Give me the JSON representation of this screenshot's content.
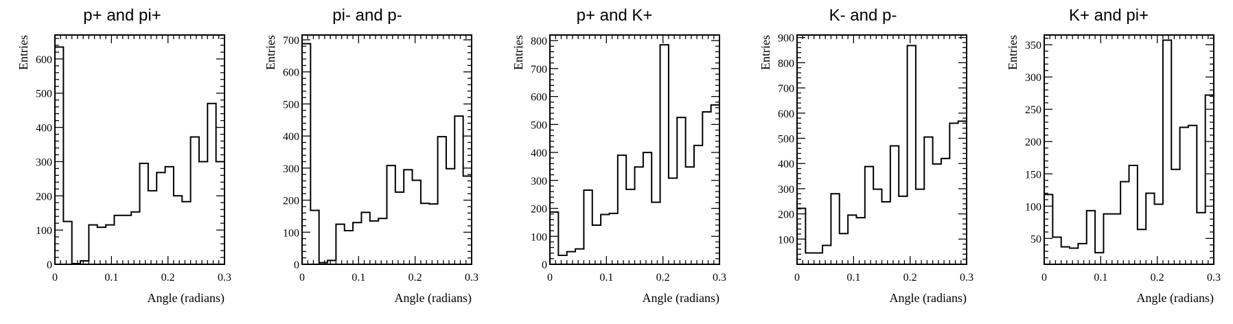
{
  "chart_data": [
    {
      "type": "histogram",
      "title": "p+ and pi+",
      "xlabel": "Angle (radians)",
      "ylabel": "Entries",
      "xlim": [
        0,
        0.3
      ],
      "ylim": [
        0,
        670
      ],
      "x_ticks": [
        "0",
        "0.1",
        "0.2",
        "0.3"
      ],
      "y_ticks": [
        "0",
        "100",
        "200",
        "300",
        "400",
        "500",
        "600"
      ],
      "bin_edges": [
        0,
        0.015,
        0.03,
        0.045,
        0.06,
        0.075,
        0.09,
        0.105,
        0.12,
        0.135,
        0.15,
        0.165,
        0.18,
        0.195,
        0.21,
        0.225,
        0.24,
        0.255,
        0.27,
        0.285,
        0.3
      ],
      "values": [
        635,
        125,
        2,
        10,
        115,
        108,
        115,
        143,
        143,
        153,
        295,
        215,
        268,
        285,
        200,
        183,
        372,
        300,
        470,
        300
      ]
    },
    {
      "type": "histogram",
      "title": "pi- and p-",
      "xlabel": "Angle (radians)",
      "ylabel": "Entries",
      "xlim": [
        0,
        0.3
      ],
      "ylim": [
        0,
        715
      ],
      "x_ticks": [
        "0",
        "0.1",
        "0.2",
        "0.3"
      ],
      "y_ticks": [
        "0",
        "100",
        "200",
        "300",
        "400",
        "500",
        "600",
        "700"
      ],
      "bin_edges": [
        0,
        0.015,
        0.03,
        0.045,
        0.06,
        0.075,
        0.09,
        0.105,
        0.12,
        0.135,
        0.15,
        0.165,
        0.18,
        0.195,
        0.21,
        0.225,
        0.24,
        0.255,
        0.27,
        0.285,
        0.3
      ],
      "values": [
        688,
        168,
        5,
        12,
        125,
        105,
        130,
        162,
        135,
        143,
        308,
        225,
        295,
        262,
        190,
        188,
        398,
        298,
        462,
        275
      ]
    },
    {
      "type": "histogram",
      "title": "p+ and K+",
      "xlabel": "Angle (radians)",
      "ylabel": "Entries",
      "xlim": [
        0,
        0.3
      ],
      "ylim": [
        0,
        820
      ],
      "x_ticks": [
        "0",
        "0.1",
        "0.2",
        "0.3"
      ],
      "y_ticks": [
        "0",
        "100",
        "200",
        "300",
        "400",
        "500",
        "600",
        "700",
        "800"
      ],
      "bin_edges": [
        0,
        0.015,
        0.03,
        0.045,
        0.06,
        0.075,
        0.09,
        0.105,
        0.12,
        0.135,
        0.15,
        0.165,
        0.18,
        0.195,
        0.21,
        0.225,
        0.24,
        0.255,
        0.27,
        0.285,
        0.3
      ],
      "values": [
        187,
        32,
        45,
        55,
        265,
        140,
        178,
        182,
        390,
        268,
        348,
        400,
        222,
        785,
        308,
        525,
        348,
        425,
        545,
        570
      ]
    },
    {
      "type": "histogram",
      "title": "K- and p-",
      "xlabel": "Angle (radians)",
      "ylabel": "Entries",
      "xlim": [
        0,
        0.3
      ],
      "ylim": [
        0,
        910
      ],
      "x_ticks": [
        "0",
        "0.1",
        "0.2",
        "0.3"
      ],
      "y_ticks": [
        "100",
        "200",
        "300",
        "400",
        "500",
        "600",
        "700",
        "800",
        "900"
      ],
      "bin_edges": [
        0,
        0.015,
        0.03,
        0.045,
        0.06,
        0.075,
        0.09,
        0.105,
        0.12,
        0.135,
        0.15,
        0.165,
        0.18,
        0.195,
        0.21,
        0.225,
        0.24,
        0.255,
        0.27,
        0.285,
        0.3
      ],
      "values": [
        222,
        45,
        45,
        75,
        280,
        122,
        195,
        185,
        388,
        298,
        248,
        470,
        270,
        868,
        298,
        505,
        398,
        420,
        560,
        568
      ]
    },
    {
      "type": "histogram",
      "title": "K+ and pi+",
      "xlabel": "Angle (radians)",
      "ylabel": "Entries",
      "xlim": [
        0,
        0.3
      ],
      "ylim": [
        10,
        365
      ],
      "x_ticks": [
        "0",
        "0.1",
        "0.2",
        "0.3"
      ],
      "y_ticks": [
        "50",
        "100",
        "150",
        "200",
        "250",
        "300",
        "350"
      ],
      "bin_edges": [
        0,
        0.015,
        0.03,
        0.045,
        0.06,
        0.075,
        0.09,
        0.105,
        0.12,
        0.135,
        0.15,
        0.165,
        0.18,
        0.195,
        0.21,
        0.225,
        0.24,
        0.255,
        0.27,
        0.285,
        0.3
      ],
      "values": [
        118,
        52,
        37,
        35,
        42,
        93,
        28,
        88,
        88,
        138,
        163,
        64,
        120,
        103,
        357,
        157,
        222,
        225,
        90,
        272
      ]
    }
  ]
}
